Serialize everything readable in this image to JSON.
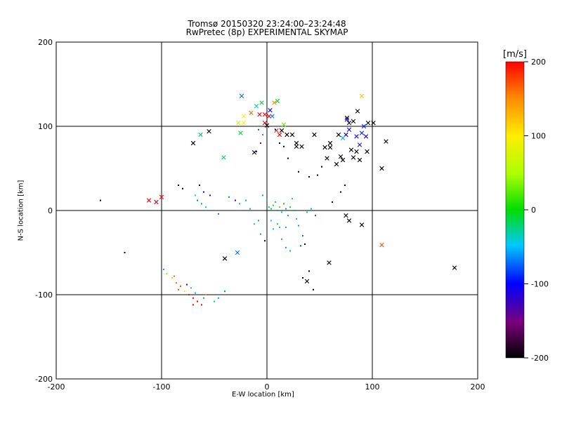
{
  "title_line1": "Tromsø 20150320 23:24:00–23:24:48",
  "title_line2": "RwPretec (8p) EXPERIMENTAL SKYMAP",
  "colorbar": {
    "unit": "[m/s]",
    "ticks": [
      200,
      100,
      0,
      -100,
      -200
    ],
    "range": [
      -200,
      200
    ]
  },
  "chart_data": {
    "type": "scatter",
    "title": "Tromsø 20150320 23:24:00–23:24:48 / RwPretec (8p) EXPERIMENTAL SKYMAP",
    "xlabel": "E-W location [km]",
    "ylabel": "N-S location [km]",
    "xlim": [
      -200,
      200
    ],
    "ylim": [
      -200,
      200
    ],
    "xticks": [
      -200,
      -100,
      0,
      100,
      200
    ],
    "yticks": [
      -200,
      -100,
      0,
      100,
      200
    ],
    "grid": true,
    "color_scale": "rainbow velocity [m/s], -200 (black) to 200 (red)",
    "series": [
      {
        "marker": "x",
        "points": [
          [
            -112,
            12,
            200
          ],
          [
            -105,
            10,
            200
          ],
          [
            -100,
            16,
            200
          ],
          [
            -70,
            80,
            -200
          ],
          [
            -63,
            90,
            -30
          ],
          [
            -55,
            94,
            -200
          ],
          [
            -41,
            63,
            -20
          ],
          [
            -40,
            -57,
            -200
          ],
          [
            -28,
            -50,
            -70
          ],
          [
            -24,
            136,
            -70
          ],
          [
            -27,
            104,
            60
          ],
          [
            -22,
            104,
            100
          ],
          [
            -25,
            92,
            -10
          ],
          [
            -12,
            69,
            -200
          ],
          [
            -10,
            124,
            -40
          ],
          [
            -7,
            114,
            200
          ],
          [
            -5,
            128,
            -10
          ],
          [
            -2,
            114,
            200
          ],
          [
            -2,
            104,
            200
          ],
          [
            0,
            101,
            -200
          ],
          [
            2,
            112,
            200
          ],
          [
            3,
            119,
            -100
          ],
          [
            5,
            112,
            -70
          ],
          [
            7,
            128,
            150
          ],
          [
            9,
            95,
            180
          ],
          [
            12,
            90,
            200
          ],
          [
            14,
            95,
            -200
          ],
          [
            19,
            90,
            -200
          ],
          [
            24,
            90,
            -200
          ],
          [
            28,
            76,
            -200
          ],
          [
            33,
            76,
            -200
          ],
          [
            45,
            90,
            -200
          ],
          [
            55,
            75,
            -200
          ],
          [
            57,
            62,
            -200
          ],
          [
            60,
            75,
            -200
          ],
          [
            66,
            55,
            -200
          ],
          [
            68,
            90,
            -200
          ],
          [
            72,
            60,
            -200
          ],
          [
            76,
            110,
            -200
          ],
          [
            80,
            72,
            -200
          ],
          [
            82,
            63,
            -200
          ],
          [
            85,
            70,
            -200
          ],
          [
            86,
            118,
            -200
          ],
          [
            88,
            78,
            -90
          ],
          [
            90,
            92,
            -90
          ],
          [
            90,
            136,
            120
          ],
          [
            92,
            100,
            -90
          ],
          [
            96,
            104,
            -200
          ],
          [
            101,
            104,
            -200
          ],
          [
            109,
            50,
            -200
          ],
          [
            113,
            82,
            -200
          ],
          [
            75,
            90,
            -100
          ],
          [
            78,
            96,
            -100
          ],
          [
            72,
            86,
            -60
          ],
          [
            76,
            108,
            -120
          ],
          [
            85,
            88,
            -110
          ],
          [
            94,
            88,
            -110
          ],
          [
            38,
            -84,
            -200
          ],
          [
            59,
            -62,
            -200
          ],
          [
            75,
            -6,
            -200
          ],
          [
            78,
            -12,
            -200
          ],
          [
            90,
            -17,
            -200
          ],
          [
            109,
            -41,
            170
          ],
          [
            178,
            -68,
            -200
          ],
          [
            70,
            64,
            -200
          ],
          [
            88,
            60,
            -200
          ],
          [
            60,
            80,
            -200
          ],
          [
            28,
            80,
            -200
          ],
          [
            95,
            70,
            -200
          ],
          [
            82,
            106,
            -200
          ],
          [
            78,
            104,
            -200
          ],
          [
            16,
            102,
            30
          ],
          [
            10,
            130,
            -10
          ],
          [
            -15,
            116,
            160
          ],
          [
            -22,
            112,
            100
          ]
        ]
      },
      {
        "marker": "dot",
        "points": [
          [
            -158,
            12,
            -200
          ],
          [
            -135,
            -50,
            -200
          ],
          [
            -98,
            -70,
            -60
          ],
          [
            -95,
            -75,
            40
          ],
          [
            -90,
            -80,
            120
          ],
          [
            -86,
            -86,
            160
          ],
          [
            -82,
            -90,
            170
          ],
          [
            -78,
            -96,
            100
          ],
          [
            -74,
            -100,
            190
          ],
          [
            -70,
            -104,
            200
          ],
          [
            -66,
            -108,
            200
          ],
          [
            -62,
            -112,
            200
          ],
          [
            -76,
            -88,
            -110
          ],
          [
            -72,
            -92,
            -20
          ],
          [
            -68,
            -98,
            -20
          ],
          [
            -60,
            -104,
            -60
          ],
          [
            -58,
            -100,
            150
          ],
          [
            -88,
            -78,
            160
          ],
          [
            -66,
            12,
            -70
          ],
          [
            -62,
            8,
            -60
          ],
          [
            -58,
            4,
            -20
          ],
          [
            -54,
            18,
            -110
          ],
          [
            -60,
            22,
            -110
          ],
          [
            -68,
            18,
            -40
          ],
          [
            -84,
            30,
            -200
          ],
          [
            -80,
            26,
            -200
          ],
          [
            -46,
            -4,
            -70
          ],
          [
            -36,
            16,
            -70
          ],
          [
            -30,
            12,
            -110
          ],
          [
            -26,
            8,
            -20
          ],
          [
            -20,
            12,
            -60
          ],
          [
            -16,
            2,
            -60
          ],
          [
            -12,
            -16,
            -40
          ],
          [
            -8,
            -12,
            -60
          ],
          [
            -4,
            18,
            -60
          ],
          [
            0,
            12,
            -40
          ],
          [
            2,
            4,
            -20
          ],
          [
            4,
            2,
            -10
          ],
          [
            6,
            6,
            10
          ],
          [
            8,
            10,
            -20
          ],
          [
            10,
            0,
            -60
          ],
          [
            12,
            4,
            20
          ],
          [
            14,
            -2,
            -20
          ],
          [
            16,
            8,
            0
          ],
          [
            18,
            2,
            -60
          ],
          [
            20,
            -6,
            -60
          ],
          [
            22,
            4,
            -10
          ],
          [
            24,
            14,
            -30
          ],
          [
            26,
            0,
            -60
          ],
          [
            28,
            -10,
            -40
          ],
          [
            30,
            -18,
            -60
          ],
          [
            34,
            -30,
            -70
          ],
          [
            38,
            -2,
            -20
          ],
          [
            42,
            2,
            -60
          ],
          [
            46,
            -6,
            -80
          ],
          [
            -6,
            -28,
            -60
          ],
          [
            -2,
            -36,
            -200
          ],
          [
            14,
            -34,
            -60
          ],
          [
            18,
            -44,
            -60
          ],
          [
            22,
            -48,
            -60
          ],
          [
            32,
            -42,
            -80
          ],
          [
            36,
            -40,
            -200
          ],
          [
            40,
            -72,
            -200
          ],
          [
            44,
            -94,
            -200
          ],
          [
            34,
            -80,
            -200
          ],
          [
            62,
            10,
            -200
          ],
          [
            70,
            22,
            -200
          ],
          [
            74,
            30,
            -200
          ],
          [
            52,
            52,
            -200
          ],
          [
            48,
            42,
            -200
          ],
          [
            40,
            40,
            -200
          ],
          [
            30,
            46,
            -200
          ],
          [
            20,
            62,
            -200
          ],
          [
            16,
            76,
            -200
          ],
          [
            12,
            80,
            -200
          ],
          [
            -10,
            70,
            -120
          ],
          [
            -6,
            80,
            -150
          ],
          [
            -4,
            90,
            -60
          ],
          [
            -8,
            96,
            -80
          ],
          [
            8,
            96,
            -100
          ],
          [
            4,
            -12,
            -40
          ],
          [
            10,
            -16,
            -10
          ],
          [
            12,
            -20,
            -20
          ],
          [
            6,
            -22,
            -40
          ],
          [
            18,
            -20,
            -60
          ],
          [
            -64,
            30,
            -200
          ],
          [
            -84,
            -94,
            170
          ],
          [
            -70,
            -112,
            200
          ],
          [
            -50,
            -108,
            -20
          ],
          [
            -46,
            -104,
            -60
          ],
          [
            -40,
            -96,
            -70
          ]
        ]
      }
    ]
  }
}
